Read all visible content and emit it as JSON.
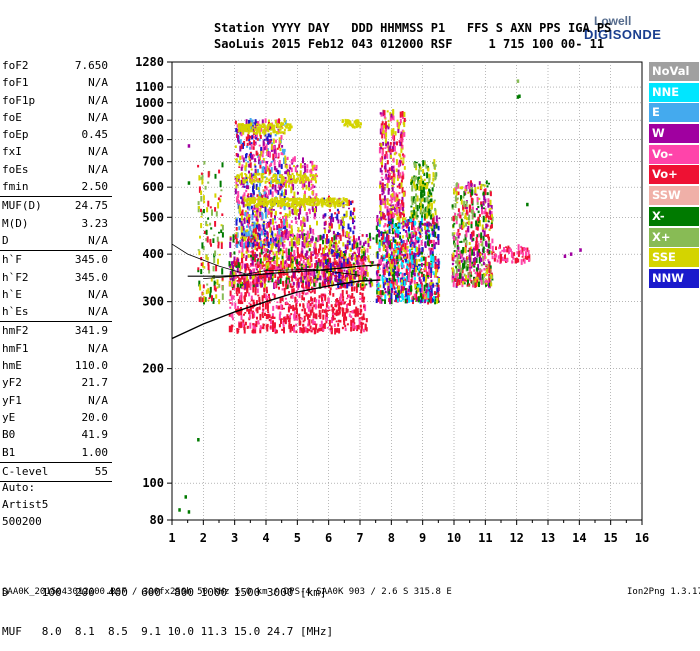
{
  "logo": {
    "line1": "Lowell",
    "line2": "DIGISONDE"
  },
  "header": {
    "line1": "Station YYYY DAY   DDD HHMMSS P1   FFS S AXN PPS IGA PS",
    "line2": "SaoLuis 2015 Feb12 043 012000 RSF     1 715 100 00- 11"
  },
  "params": {
    "group1": [
      {
        "k": "foF2",
        "v": "7.650"
      },
      {
        "k": "foF1",
        "v": "N/A"
      },
      {
        "k": "foF1p",
        "v": "N/A"
      },
      {
        "k": "foE",
        "v": "N/A"
      },
      {
        "k": "foEp",
        "v": "0.45"
      },
      {
        "k": "fxI",
        "v": "N/A"
      },
      {
        "k": "foEs",
        "v": "N/A"
      },
      {
        "k": "fmin",
        "v": "2.50"
      }
    ],
    "group2": [
      {
        "k": "MUF(D)",
        "v": "24.75"
      },
      {
        "k": "M(D)",
        "v": "3.23"
      },
      {
        "k": "D",
        "v": "N/A"
      }
    ],
    "group3": [
      {
        "k": "h`F",
        "v": "345.0"
      },
      {
        "k": "h`F2",
        "v": "345.0"
      },
      {
        "k": "h`E",
        "v": "N/A"
      },
      {
        "k": "h`Es",
        "v": "N/A"
      }
    ],
    "group4": [
      {
        "k": "hmF2",
        "v": "341.9"
      },
      {
        "k": "hmF1",
        "v": "N/A"
      },
      {
        "k": "hmE",
        "v": "110.0"
      },
      {
        "k": "yF2",
        "v": "21.7"
      },
      {
        "k": "yF1",
        "v": "N/A"
      },
      {
        "k": "yE",
        "v": "20.0"
      },
      {
        "k": "B0",
        "v": "41.9"
      },
      {
        "k": "B1",
        "v": "1.00"
      }
    ],
    "group5": [
      {
        "k": "C-level",
        "v": "55"
      }
    ]
  },
  "artist": {
    "line1": "Auto:",
    "line2": "Artist5",
    "line3": "500200"
  },
  "dmuf": {
    "line1": "D     100  200  400  600  800 1000 1500 3000 [km]",
    "line2": "MUF   8.0  8.1  8.5  9.1 10.0 11.3 15.0 24.7 [MHz]"
  },
  "footer": "SAA0K_2015043012000.RSF / 300fx256h 50 kHz 5.0 km / DPS-4 SAA0K 903 / 2.6 S 315.8 E",
  "version": "Ion2Png 1.3.17",
  "legend": [
    {
      "label": "NoVal",
      "bg": "#a0a0a0",
      "fg": "#ffffff"
    },
    {
      "label": "NNE",
      "bg": "#00e6ff",
      "fg": "#ffffff"
    },
    {
      "label": "E",
      "bg": "#44aaee",
      "fg": "#ffffff"
    },
    {
      "label": "W",
      "bg": "#a000a0",
      "fg": "#ffffff"
    },
    {
      "label": "Vo-",
      "bg": "#ff44aa",
      "fg": "#ffffff"
    },
    {
      "label": "Vo+",
      "bg": "#ee1133",
      "fg": "#ffffff"
    },
    {
      "label": "SSW",
      "bg": "#f0b0a8",
      "fg": "#ffffff"
    },
    {
      "label": "X-",
      "bg": "#007a00",
      "fg": "#ffffff"
    },
    {
      "label": "X+",
      "bg": "#88bb55",
      "fg": "#ffffff"
    },
    {
      "label": "SSE",
      "bg": "#d4d400",
      "fg": "#ffffff"
    },
    {
      "label": "NNW",
      "bg": "#1a1acc",
      "fg": "#ffffff"
    }
  ],
  "chart_data": {
    "type": "scatter",
    "xlim": [
      1,
      16
    ],
    "ylim": [
      80,
      1280
    ],
    "y_scale": "log",
    "grid": true,
    "x_ticks": [
      "1",
      "2",
      "3",
      "4",
      "5",
      "6",
      "7",
      "8",
      "9",
      "10",
      "11",
      "12",
      "13",
      "14",
      "15",
      "16"
    ],
    "y_ticks": [
      "80",
      "100",
      "200",
      "300",
      "400",
      "500",
      "600",
      "700",
      "800",
      "900",
      "1000",
      "1100",
      "1280"
    ],
    "trace_profile": {
      "x": [
        1.0,
        2.0,
        3.0,
        4.0,
        5.0,
        6.0,
        7.0,
        7.65
      ],
      "y": [
        240,
        262,
        282,
        300,
        318,
        330,
        340,
        342
      ]
    },
    "trace_vh": {
      "x": [
        1.5,
        2.5,
        3.5,
        4.5,
        5.5,
        6.5,
        7.0,
        7.65
      ],
      "y": [
        350,
        350,
        352,
        358,
        362,
        368,
        372,
        375
      ]
    },
    "traces_x_mode": [
      {
        "x": [
          1.0,
          1.5,
          2.5,
          3.5
        ],
        "y": [
          425,
          400,
          372,
          352
        ]
      },
      {
        "x": [
          2.0,
          3.0,
          4.0,
          5.5,
          7.0
        ],
        "y": [
          345,
          350,
          362,
          365,
          352
        ]
      }
    ],
    "clusters": [
      {
        "x": [
          2.8,
          7.2
        ],
        "y": [
          250,
          400
        ],
        "n": 900,
        "colors": [
          "#ee1133",
          "#ff44aa",
          "#ee1133",
          "#ee1133"
        ]
      },
      {
        "x": [
          2.8,
          7.4
        ],
        "y": [
          330,
          450
        ],
        "n": 650,
        "colors": [
          "#d4d400",
          "#a000a0",
          "#ee1133",
          "#ff44aa",
          "#007a00"
        ]
      },
      {
        "x": [
          3.0,
          4.6
        ],
        "y": [
          420,
          900
        ],
        "n": 700,
        "colors": [
          "#a000a0",
          "#ff44aa",
          "#d4d400",
          "#ee1133",
          "#1a1acc",
          "#44aaee"
        ]
      },
      {
        "x": [
          4.6,
          5.6
        ],
        "y": [
          420,
          720
        ],
        "n": 220,
        "colors": [
          "#a000a0",
          "#ff44aa",
          "#d4d400"
        ]
      },
      {
        "x": [
          7.5,
          9.5
        ],
        "y": [
          300,
          500
        ],
        "n": 900,
        "colors": [
          "#ee1133",
          "#ff44aa",
          "#d4d400",
          "#1a1acc",
          "#007a00",
          "#a000a0",
          "#00e6ff"
        ]
      },
      {
        "x": [
          7.6,
          8.4
        ],
        "y": [
          500,
          950
        ],
        "n": 320,
        "colors": [
          "#d4d400",
          "#ff44aa",
          "#a000a0",
          "#ee1133"
        ]
      },
      {
        "x": [
          8.6,
          9.4
        ],
        "y": [
          500,
          700
        ],
        "n": 180,
        "colors": [
          "#d4d400",
          "#88bb55",
          "#007a00"
        ]
      },
      {
        "x": [
          9.9,
          11.2
        ],
        "y": [
          330,
          620
        ],
        "n": 520,
        "colors": [
          "#ee1133",
          "#ff44aa",
          "#007a00",
          "#88bb55",
          "#a000a0",
          "#d4d400"
        ]
      },
      {
        "x": [
          11.2,
          12.4
        ],
        "y": [
          380,
          420
        ],
        "n": 70,
        "colors": [
          "#ee1133",
          "#ff44aa"
        ]
      },
      {
        "x": [
          5.8,
          6.8
        ],
        "y": [
          330,
          560
        ],
        "n": 180,
        "colors": [
          "#ee1133",
          "#1a1acc",
          "#a000a0",
          "#d4d400"
        ]
      },
      {
        "x": [
          1.8,
          2.6
        ],
        "y": [
          300,
          700
        ],
        "n": 130,
        "colors": [
          "#d4d400",
          "#ee1133",
          "#007a00",
          "#88bb55"
        ]
      }
    ],
    "bands": [
      {
        "x": [
          3.3,
          6.6
        ],
        "y": [
          535,
          560
        ],
        "n": 320,
        "color": "#d4d400"
      },
      {
        "x": [
          3.0,
          5.6
        ],
        "y": [
          615,
          650
        ],
        "n": 140,
        "color": "#d4d400"
      },
      {
        "x": [
          3.1,
          4.8
        ],
        "y": [
          830,
          880
        ],
        "n": 140,
        "color": "#d4d400"
      },
      {
        "x": [
          6.4,
          7.0
        ],
        "y": [
          860,
          900
        ],
        "n": 50,
        "color": "#d4d400"
      }
    ],
    "isolated": [
      {
        "x": 12.0,
        "y": 1035,
        "color": "#007a00"
      },
      {
        "x": 12.05,
        "y": 1040,
        "color": "#007a00"
      },
      {
        "x": 12.0,
        "y": 1140,
        "color": "#88bb55"
      },
      {
        "x": 13.5,
        "y": 395,
        "color": "#a000a0"
      },
      {
        "x": 13.7,
        "y": 400,
        "color": "#a000a0"
      },
      {
        "x": 14.0,
        "y": 410,
        "color": "#a000a0"
      },
      {
        "x": 1.5,
        "y": 770,
        "color": "#a000a0"
      },
      {
        "x": 1.5,
        "y": 615,
        "color": "#007a00"
      },
      {
        "x": 1.4,
        "y": 92,
        "color": "#007a00"
      },
      {
        "x": 1.2,
        "y": 85,
        "color": "#007a00"
      },
      {
        "x": 1.5,
        "y": 84,
        "color": "#007a00"
      },
      {
        "x": 1.8,
        "y": 130,
        "color": "#007a00"
      },
      {
        "x": 12.3,
        "y": 540,
        "color": "#007a00"
      }
    ]
  }
}
